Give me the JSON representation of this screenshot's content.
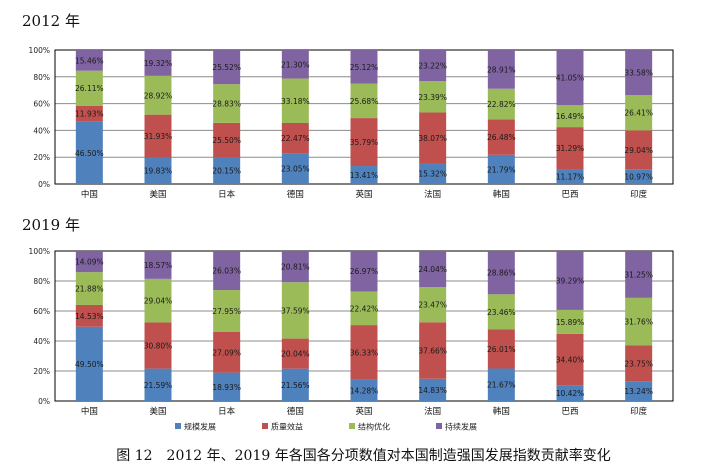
{
  "chart_data": [
    {
      "type": "bar",
      "stacked": true,
      "title": "2012 年",
      "categories": [
        "中国",
        "美国",
        "日本",
        "德国",
        "英国",
        "法国",
        "韩国",
        "巴西",
        "印度"
      ],
      "yticks": [
        "0%",
        "20%",
        "40%",
        "60%",
        "80%",
        "100%"
      ],
      "ylim": [
        0,
        100
      ],
      "series": [
        {
          "name": "规模发展",
          "color": "#4F81BD",
          "values": [
            46.5,
            19.83,
            20.15,
            23.05,
            13.41,
            15.32,
            21.79,
            11.17,
            10.97
          ]
        },
        {
          "name": "质量效益",
          "color": "#C0504D",
          "values": [
            11.93,
            31.93,
            25.5,
            22.47,
            35.79,
            38.07,
            26.48,
            31.29,
            29.04
          ]
        },
        {
          "name": "结构优化",
          "color": "#9BBB59",
          "values": [
            26.11,
            28.92,
            28.83,
            33.18,
            25.68,
            23.39,
            22.82,
            16.49,
            26.41
          ]
        },
        {
          "name": "持续发展",
          "color": "#8064A2",
          "values": [
            15.46,
            19.32,
            25.52,
            21.3,
            25.12,
            23.22,
            28.91,
            41.05,
            33.58
          ]
        }
      ]
    },
    {
      "type": "bar",
      "stacked": true,
      "title": "2019 年",
      "categories": [
        "中国",
        "美国",
        "日本",
        "德国",
        "英国",
        "法国",
        "韩国",
        "巴西",
        "印度"
      ],
      "yticks": [
        "0%",
        "20%",
        "40%",
        "60%",
        "80%",
        "100%"
      ],
      "ylim": [
        0,
        100
      ],
      "series": [
        {
          "name": "规模发展",
          "color": "#4F81BD",
          "values": [
            49.5,
            21.59,
            18.93,
            21.56,
            14.28,
            14.83,
            21.67,
            10.42,
            13.24
          ]
        },
        {
          "name": "质量效益",
          "color": "#C0504D",
          "values": [
            14.53,
            30.8,
            27.09,
            20.04,
            36.33,
            37.66,
            26.01,
            34.4,
            23.75
          ]
        },
        {
          "name": "结构优化",
          "color": "#9BBB59",
          "values": [
            21.88,
            29.04,
            27.95,
            37.59,
            22.42,
            23.47,
            23.46,
            15.89,
            31.76
          ]
        },
        {
          "name": "持续发展",
          "color": "#8064A2",
          "values": [
            14.09,
            18.57,
            26.03,
            20.81,
            26.97,
            24.04,
            28.86,
            39.29,
            31.25
          ]
        }
      ],
      "legend": "bottom"
    }
  ],
  "caption": "图 12　2012 年、2019 年各国各分项数值对本国制造强国发展指数贡献率变化"
}
